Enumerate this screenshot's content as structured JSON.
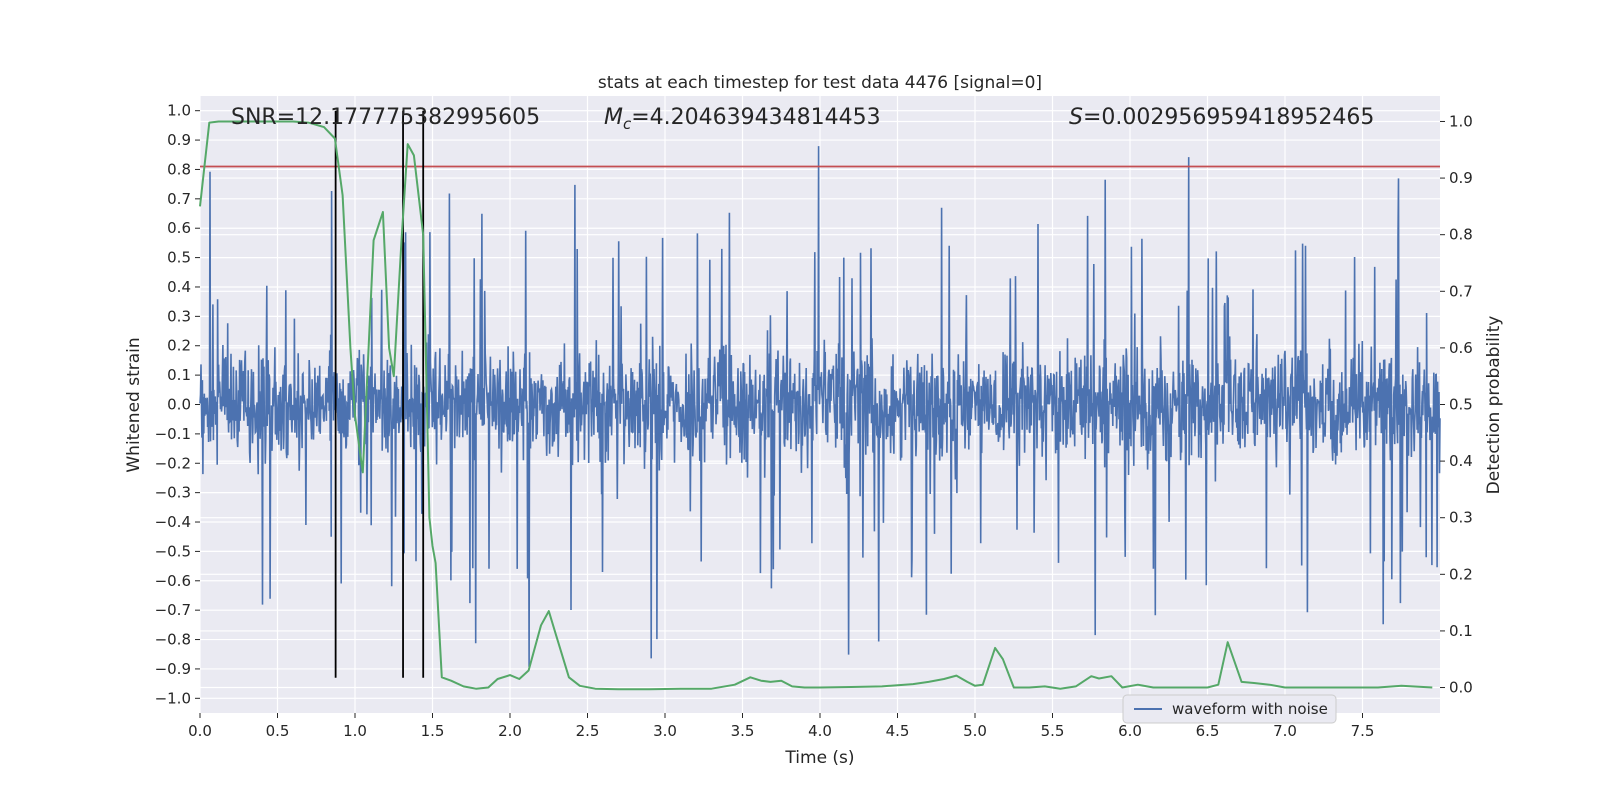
{
  "chart_data": {
    "type": "line",
    "title": "stats at each timestep for test data 4476 [signal=0]",
    "xlabel": "Time (s)",
    "ylabel_left": "Whitened strain",
    "ylabel_right": "Detection probability",
    "xlim": [
      0.0,
      8.0
    ],
    "ylim_left": [
      -1.05,
      1.05
    ],
    "ylim_right": [
      -0.045,
      1.045
    ],
    "x_ticks": [
      "0.0",
      "0.5",
      "1.0",
      "1.5",
      "2.0",
      "2.5",
      "3.0",
      "3.5",
      "4.0",
      "4.5",
      "5.0",
      "5.5",
      "6.0",
      "6.5",
      "7.0",
      "7.5"
    ],
    "y_left_ticks": [
      "1.0",
      "0.9",
      "0.8",
      "0.7",
      "0.6",
      "0.5",
      "0.4",
      "0.3",
      "0.2",
      "0.1",
      "0.0",
      "−0.1",
      "−0.2",
      "−0.3",
      "−0.4",
      "−0.5",
      "−0.6",
      "−0.7",
      "−0.8",
      "−0.9",
      "−1.0"
    ],
    "y_right_ticks": [
      "1.0",
      "0.9",
      "0.8",
      "0.7",
      "0.6",
      "0.5",
      "0.4",
      "0.3",
      "0.2",
      "0.1",
      "0.0"
    ],
    "annotations": {
      "snr": "SNR=12.177775382995605",
      "mc_symbol": "M",
      "mc_sub": "c",
      "mc_value": "=4.204639434814453",
      "s_symbol": "S",
      "s_value": "=0.002956959418952465"
    },
    "threshold_left": 0.81,
    "vertical_lines_x": [
      0.875,
      1.31,
      1.44
    ],
    "legend": {
      "label": "waveform with noise",
      "placement": "lower-right"
    },
    "colors": {
      "waveform": "#4c72b0",
      "probability": "#55a868",
      "threshold": "#c44e52",
      "vline": "#000000",
      "background": "#eaeaf2",
      "grid": "#ffffff"
    },
    "series": [
      {
        "name": "waveform with noise",
        "axis": "left",
        "style": "noise",
        "x_range": [
          0.0,
          8.0
        ],
        "amplitude_bounds": [
          -0.93,
          1.0
        ]
      },
      {
        "name": "detection probability",
        "axis": "right",
        "x": [
          0.0,
          0.06,
          0.12,
          0.2,
          0.3,
          0.4,
          0.5,
          0.6,
          0.7,
          0.8,
          0.87,
          0.92,
          0.97,
          1.0,
          1.05,
          1.12,
          1.18,
          1.22,
          1.25,
          1.3,
          1.34,
          1.38,
          1.44,
          1.48,
          1.5,
          1.52,
          1.56,
          1.62,
          1.7,
          1.78,
          1.86,
          1.92,
          2.0,
          2.06,
          2.12,
          2.2,
          2.25,
          2.3,
          2.38,
          2.45,
          2.55,
          2.7,
          2.9,
          3.1,
          3.3,
          3.45,
          3.55,
          3.62,
          3.68,
          3.75,
          3.82,
          3.9,
          4.0,
          4.2,
          4.4,
          4.6,
          4.7,
          4.8,
          4.88,
          4.95,
          5.0,
          5.05,
          5.13,
          5.18,
          5.25,
          5.35,
          5.45,
          5.55,
          5.65,
          5.75,
          5.8,
          5.88,
          5.95,
          6.05,
          6.15,
          6.3,
          6.5,
          6.57,
          6.63,
          6.72,
          6.8,
          6.9,
          7.0,
          7.3,
          7.6,
          7.75,
          7.95
        ],
        "values": [
          0.85,
          0.998,
          1.0,
          1.0,
          1.0,
          1.0,
          1.0,
          1.0,
          0.998,
          0.99,
          0.97,
          0.87,
          0.6,
          0.48,
          0.38,
          0.79,
          0.84,
          0.6,
          0.55,
          0.79,
          0.96,
          0.94,
          0.8,
          0.3,
          0.25,
          0.22,
          0.018,
          0.012,
          0.002,
          -0.002,
          0.0,
          0.015,
          0.022,
          0.015,
          0.03,
          0.11,
          0.135,
          0.09,
          0.018,
          0.003,
          -0.002,
          -0.003,
          -0.003,
          -0.002,
          -0.002,
          0.005,
          0.018,
          0.012,
          0.01,
          0.012,
          0.002,
          0.0,
          0.0,
          0.001,
          0.002,
          0.006,
          0.01,
          0.015,
          0.021,
          0.01,
          0.003,
          0.005,
          0.07,
          0.05,
          0.0,
          0.0,
          0.002,
          -0.002,
          0.002,
          0.02,
          0.016,
          0.02,
          0.0,
          0.005,
          0.0,
          0.0,
          0.0,
          0.005,
          0.08,
          0.01,
          0.008,
          0.005,
          0.0,
          0.0,
          0.0,
          0.003,
          0.0
        ]
      }
    ]
  }
}
